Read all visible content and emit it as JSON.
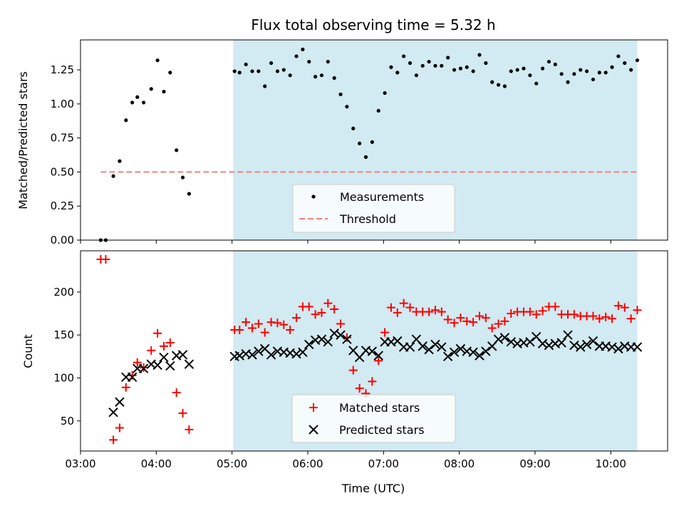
{
  "chart_data": [
    {
      "type": "scatter",
      "title": "Flux total observing time = 5.32 h",
      "xlabel": "",
      "ylabel": "Matched/Predicted stars",
      "xlim": [
        "03:00",
        "10:45"
      ],
      "ylim": [
        0,
        1.47
      ],
      "x_ticks": [
        "03:00",
        "04:00",
        "05:00",
        "06:00",
        "07:00",
        "08:00",
        "09:00",
        "10:00"
      ],
      "y_ticks": [
        "0.00",
        "0.25",
        "0.50",
        "0.75",
        "1.00",
        "1.25"
      ],
      "highlight_band": {
        "from": "05:01",
        "to": "10:21",
        "color": "#add8e6"
      },
      "legend": {
        "position": "lower center",
        "entries": [
          "Measurements",
          "Threshold"
        ]
      },
      "series": [
        {
          "name": "Measurements",
          "marker": "dot",
          "color": "#000000",
          "points": [
            [
              "03:16",
              0.0
            ],
            [
              "03:20",
              0.0
            ],
            [
              "03:26",
              0.47
            ],
            [
              "03:31",
              0.58
            ],
            [
              "03:36",
              0.88
            ],
            [
              "03:41",
              1.01
            ],
            [
              "03:45",
              1.05
            ],
            [
              "03:50",
              1.01
            ],
            [
              "03:56",
              1.11
            ],
            [
              "04:01",
              1.32
            ],
            [
              "04:06",
              1.09
            ],
            [
              "04:11",
              1.23
            ],
            [
              "04:16",
              0.66
            ],
            [
              "04:21",
              0.46
            ],
            [
              "04:26",
              0.34
            ],
            [
              "05:02",
              1.24
            ],
            [
              "05:06",
              1.23
            ],
            [
              "05:11",
              1.29
            ],
            [
              "05:16",
              1.24
            ],
            [
              "05:21",
              1.24
            ],
            [
              "05:26",
              1.13
            ],
            [
              "05:31",
              1.3
            ],
            [
              "05:36",
              1.24
            ],
            [
              "05:41",
              1.25
            ],
            [
              "05:46",
              1.21
            ],
            [
              "05:51",
              1.35
            ],
            [
              "05:56",
              1.4
            ],
            [
              "06:01",
              1.31
            ],
            [
              "06:06",
              1.2
            ],
            [
              "06:11",
              1.21
            ],
            [
              "06:16",
              1.31
            ],
            [
              "06:21",
              1.19
            ],
            [
              "06:26",
              1.07
            ],
            [
              "06:31",
              0.98
            ],
            [
              "06:36",
              0.82
            ],
            [
              "06:41",
              0.71
            ],
            [
              "06:46",
              0.61
            ],
            [
              "06:51",
              0.72
            ],
            [
              "06:56",
              0.95
            ],
            [
              "07:01",
              1.08
            ],
            [
              "07:06",
              1.27
            ],
            [
              "07:11",
              1.23
            ],
            [
              "07:16",
              1.35
            ],
            [
              "07:21",
              1.3
            ],
            [
              "07:26",
              1.21
            ],
            [
              "07:31",
              1.28
            ],
            [
              "07:36",
              1.31
            ],
            [
              "07:41",
              1.28
            ],
            [
              "07:46",
              1.28
            ],
            [
              "07:51",
              1.34
            ],
            [
              "07:56",
              1.25
            ],
            [
              "08:01",
              1.26
            ],
            [
              "08:06",
              1.27
            ],
            [
              "08:11",
              1.24
            ],
            [
              "08:16",
              1.36
            ],
            [
              "08:21",
              1.3
            ],
            [
              "08:26",
              1.16
            ],
            [
              "08:31",
              1.14
            ],
            [
              "08:36",
              1.13
            ],
            [
              "08:41",
              1.24
            ],
            [
              "08:46",
              1.25
            ],
            [
              "08:51",
              1.26
            ],
            [
              "08:56",
              1.21
            ],
            [
              "09:01",
              1.15
            ],
            [
              "09:06",
              1.26
            ],
            [
              "09:11",
              1.31
            ],
            [
              "09:16",
              1.29
            ],
            [
              "09:21",
              1.22
            ],
            [
              "09:26",
              1.16
            ],
            [
              "09:31",
              1.22
            ],
            [
              "09:36",
              1.25
            ],
            [
              "09:41",
              1.24
            ],
            [
              "09:46",
              1.18
            ],
            [
              "09:51",
              1.23
            ],
            [
              "09:56",
              1.23
            ],
            [
              "10:01",
              1.27
            ],
            [
              "10:06",
              1.35
            ],
            [
              "10:11",
              1.3
            ],
            [
              "10:16",
              1.25
            ],
            [
              "10:21",
              1.32
            ]
          ]
        },
        {
          "name": "Threshold",
          "marker": "dashed-line",
          "color": "#f08080",
          "points": [
            [
              "03:16",
              0.5
            ],
            [
              "10:21",
              0.5
            ]
          ]
        }
      ]
    },
    {
      "type": "scatter",
      "title": "",
      "xlabel": "Time (UTC)",
      "ylabel": "Count",
      "xlim": [
        "03:00",
        "10:45"
      ],
      "ylim": [
        15,
        248
      ],
      "x_ticks": [
        "03:00",
        "04:00",
        "05:00",
        "06:00",
        "07:00",
        "08:00",
        "09:00",
        "10:00"
      ],
      "y_ticks": [
        "50",
        "100",
        "150",
        "200"
      ],
      "highlight_band": {
        "from": "05:01",
        "to": "10:21",
        "color": "#add8e6"
      },
      "legend": {
        "position": "lower center",
        "entries": [
          "Matched stars",
          "Predicted stars"
        ]
      },
      "series": [
        {
          "name": "Matched stars",
          "marker": "plus",
          "color": "#ff0000",
          "points": [
            [
              "03:16",
              238
            ],
            [
              "03:20",
              238
            ],
            [
              "03:26",
              28
            ],
            [
              "03:31",
              42
            ],
            [
              "03:36",
              89
            ],
            [
              "03:41",
              103
            ],
            [
              "03:45",
              118
            ],
            [
              "03:50",
              112
            ],
            [
              "03:56",
              132
            ],
            [
              "04:01",
              152
            ],
            [
              "04:06",
              137
            ],
            [
              "04:11",
              141
            ],
            [
              "04:16",
              83
            ],
            [
              "04:21",
              59
            ],
            [
              "04:26",
              40
            ],
            [
              "05:02",
              156
            ],
            [
              "05:06",
              156
            ],
            [
              "05:11",
              165
            ],
            [
              "05:16",
              158
            ],
            [
              "05:21",
              163
            ],
            [
              "05:26",
              153
            ],
            [
              "05:31",
              165
            ],
            [
              "05:36",
              164
            ],
            [
              "05:41",
              162
            ],
            [
              "05:46",
              156
            ],
            [
              "05:51",
              170
            ],
            [
              "05:56",
              183
            ],
            [
              "06:01",
              183
            ],
            [
              "06:06",
              174
            ],
            [
              "06:11",
              176
            ],
            [
              "06:16",
              187
            ],
            [
              "06:21",
              180
            ],
            [
              "06:26",
              163
            ],
            [
              "06:31",
              147
            ],
            [
              "06:36",
              109
            ],
            [
              "06:41",
              88
            ],
            [
              "06:46",
              82
            ],
            [
              "06:51",
              96
            ],
            [
              "06:56",
              120
            ],
            [
              "07:01",
              153
            ],
            [
              "07:06",
              182
            ],
            [
              "07:11",
              176
            ],
            [
              "07:16",
              187
            ],
            [
              "07:21",
              182
            ],
            [
              "07:26",
              177
            ],
            [
              "07:31",
              177
            ],
            [
              "07:36",
              177
            ],
            [
              "07:41",
              179
            ],
            [
              "07:46",
              177
            ],
            [
              "07:51",
              168
            ],
            [
              "07:56",
              164
            ],
            [
              "08:01",
              170
            ],
            [
              "08:06",
              166
            ],
            [
              "08:11",
              165
            ],
            [
              "08:16",
              172
            ],
            [
              "08:21",
              170
            ],
            [
              "08:26",
              158
            ],
            [
              "08:31",
              163
            ],
            [
              "08:36",
              166
            ],
            [
              "08:41",
              175
            ],
            [
              "08:46",
              177
            ],
            [
              "08:51",
              177
            ],
            [
              "08:56",
              177
            ],
            [
              "09:01",
              174
            ],
            [
              "09:06",
              178
            ],
            [
              "09:11",
              183
            ],
            [
              "09:16",
              183
            ],
            [
              "09:21",
              174
            ],
            [
              "09:26",
              174
            ],
            [
              "09:31",
              174
            ],
            [
              "09:36",
              172
            ],
            [
              "09:41",
              172
            ],
            [
              "09:46",
              172
            ],
            [
              "09:51",
              169
            ],
            [
              "09:56",
              171
            ],
            [
              "10:01",
              169
            ],
            [
              "10:06",
              184
            ],
            [
              "10:11",
              182
            ],
            [
              "10:16",
              169
            ],
            [
              "10:21",
              179
            ]
          ]
        },
        {
          "name": "Predicted stars",
          "marker": "x",
          "color": "#000000",
          "points": [
            [
              "03:26",
              60
            ],
            [
              "03:31",
              72
            ],
            [
              "03:36",
              101
            ],
            [
              "03:41",
              101
            ],
            [
              "03:45",
              111
            ],
            [
              "03:50",
              111
            ],
            [
              "03:56",
              116
            ],
            [
              "04:01",
              115
            ],
            [
              "04:06",
              124
            ],
            [
              "04:11",
              114
            ],
            [
              "04:16",
              126
            ],
            [
              "04:21",
              127
            ],
            [
              "04:26",
              116
            ],
            [
              "05:02",
              125
            ],
            [
              "05:06",
              126
            ],
            [
              "05:11",
              128
            ],
            [
              "05:16",
              127
            ],
            [
              "05:21",
              131
            ],
            [
              "05:26",
              134
            ],
            [
              "05:31",
              127
            ],
            [
              "05:36",
              131
            ],
            [
              "05:41",
              130
            ],
            [
              "05:46",
              129
            ],
            [
              "05:51",
              128
            ],
            [
              "05:56",
              130
            ],
            [
              "06:01",
              139
            ],
            [
              "06:06",
              144
            ],
            [
              "06:11",
              145
            ],
            [
              "06:16",
              142
            ],
            [
              "06:21",
              152
            ],
            [
              "06:26",
              150
            ],
            [
              "06:31",
              145
            ],
            [
              "06:36",
              132
            ],
            [
              "06:41",
              124
            ],
            [
              "06:46",
              132
            ],
            [
              "06:51",
              131
            ],
            [
              "06:56",
              126
            ],
            [
              "07:01",
              142
            ],
            [
              "07:06",
              142
            ],
            [
              "07:11",
              143
            ],
            [
              "07:16",
              136
            ],
            [
              "07:21",
              136
            ],
            [
              "07:26",
              145
            ],
            [
              "07:31",
              137
            ],
            [
              "07:36",
              133
            ],
            [
              "07:41",
              139
            ],
            [
              "07:46",
              136
            ],
            [
              "07:51",
              125
            ],
            [
              "07:56",
              130
            ],
            [
              "08:01",
              134
            ],
            [
              "08:06",
              131
            ],
            [
              "08:11",
              130
            ],
            [
              "08:16",
              126
            ],
            [
              "08:21",
              131
            ],
            [
              "08:26",
              137
            ],
            [
              "08:31",
              145
            ],
            [
              "08:36",
              147
            ],
            [
              "08:41",
              142
            ],
            [
              "08:46",
              140
            ],
            [
              "08:51",
              141
            ],
            [
              "08:56",
              142
            ],
            [
              "09:01",
              148
            ],
            [
              "09:06",
              140
            ],
            [
              "09:11",
              138
            ],
            [
              "09:16",
              140
            ],
            [
              "09:21",
              141
            ],
            [
              "09:26",
              150
            ],
            [
              "09:31",
              138
            ],
            [
              "09:36",
              136
            ],
            [
              "09:41",
              139
            ],
            [
              "09:46",
              143
            ],
            [
              "09:51",
              137
            ],
            [
              "09:56",
              137
            ],
            [
              "10:01",
              136
            ],
            [
              "10:06",
              134
            ],
            [
              "10:11",
              137
            ],
            [
              "10:16",
              136
            ],
            [
              "10:21",
              136
            ]
          ]
        }
      ]
    }
  ]
}
